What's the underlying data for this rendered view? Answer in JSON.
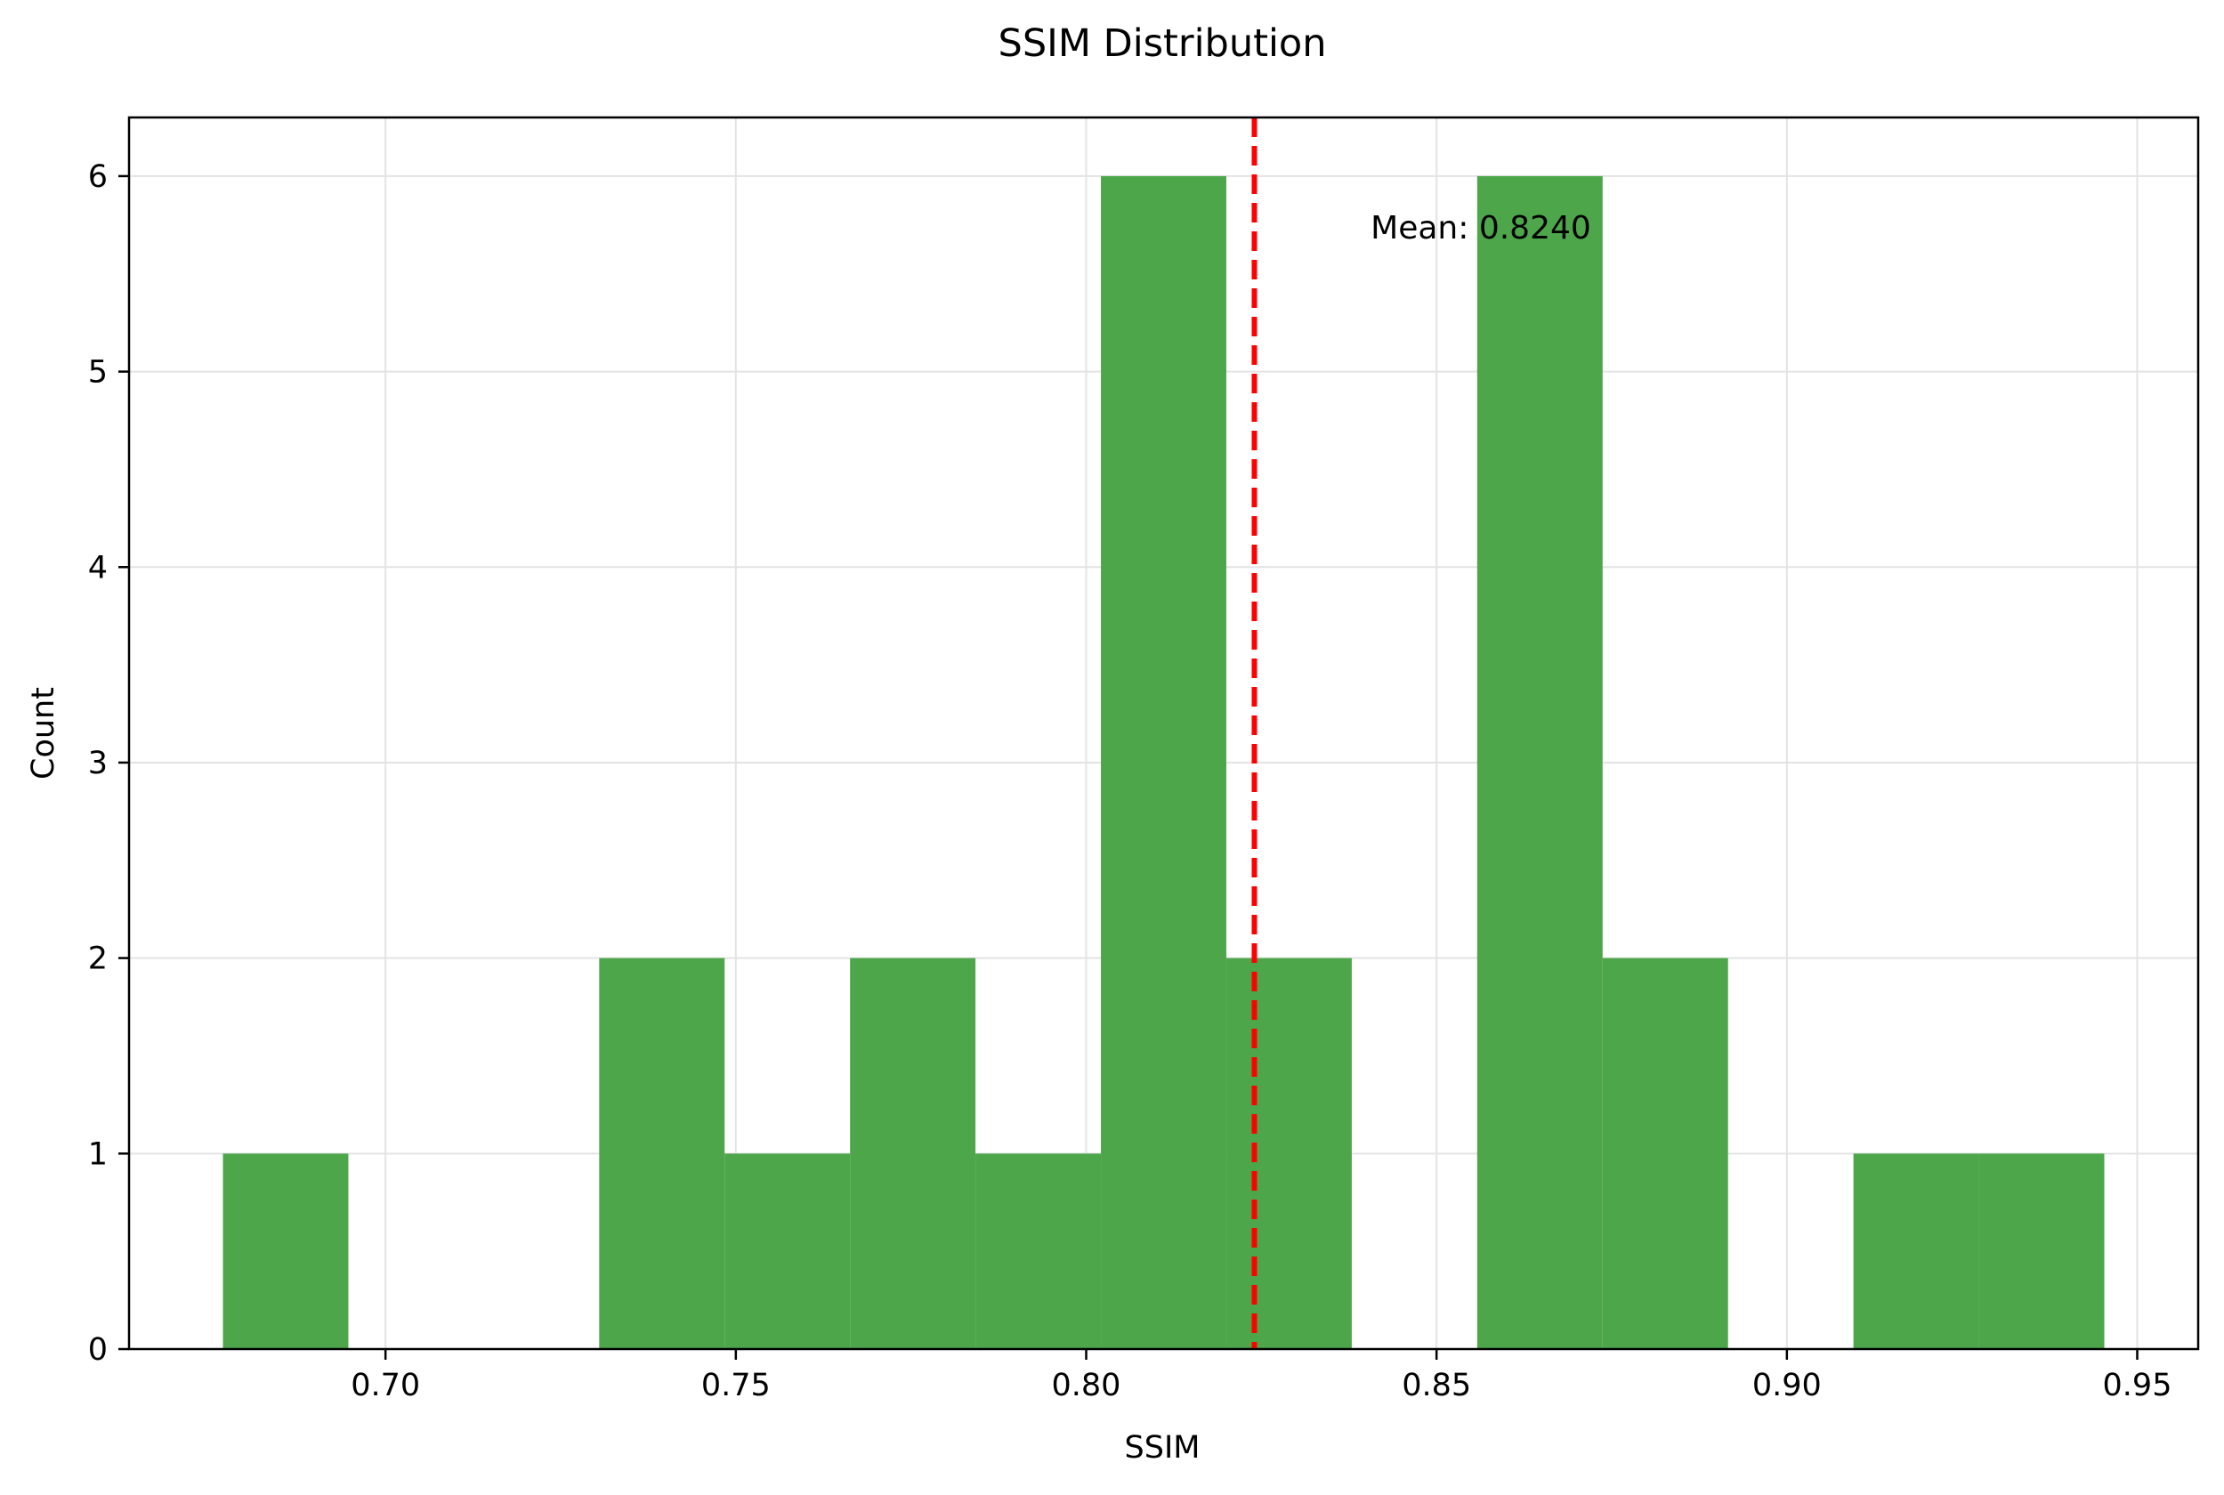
{
  "chart_data": {
    "type": "bar",
    "title": "SSIM Distribution",
    "xlabel": "SSIM",
    "ylabel": "Count",
    "bins": [
      {
        "x0": 0.6768,
        "x1": 0.6947,
        "count": 1
      },
      {
        "x0": 0.6947,
        "x1": 0.7126,
        "count": 0
      },
      {
        "x0": 0.7126,
        "x1": 0.7305,
        "count": 0
      },
      {
        "x0": 0.7305,
        "x1": 0.7484,
        "count": 2
      },
      {
        "x0": 0.7484,
        "x1": 0.7663,
        "count": 1
      },
      {
        "x0": 0.7663,
        "x1": 0.7842,
        "count": 2
      },
      {
        "x0": 0.7842,
        "x1": 0.8021,
        "count": 1
      },
      {
        "x0": 0.8021,
        "x1": 0.82,
        "count": 6
      },
      {
        "x0": 0.82,
        "x1": 0.8379,
        "count": 2
      },
      {
        "x0": 0.8379,
        "x1": 0.8558,
        "count": 0
      },
      {
        "x0": 0.8558,
        "x1": 0.8737,
        "count": 6
      },
      {
        "x0": 0.8737,
        "x1": 0.8916,
        "count": 2
      },
      {
        "x0": 0.8916,
        "x1": 0.9095,
        "count": 0
      },
      {
        "x0": 0.9095,
        "x1": 0.9274,
        "count": 1
      },
      {
        "x0": 0.9274,
        "x1": 0.9453,
        "count": 1
      }
    ],
    "bar_color": "#4ea64b",
    "xlim": [
      0.6634,
      0.9587
    ],
    "ylim": [
      0,
      6.3
    ],
    "x_ticks": [
      0.7,
      0.75,
      0.8,
      0.85,
      0.9,
      0.95
    ],
    "x_tick_labels": [
      "0.70",
      "0.75",
      "0.80",
      "0.85",
      "0.90",
      "0.95"
    ],
    "y_ticks": [
      0,
      1,
      2,
      3,
      4,
      5,
      6
    ],
    "y_tick_labels": [
      "0",
      "1",
      "2",
      "3",
      "4",
      "5",
      "6"
    ],
    "grid": true,
    "mean_line": {
      "value": 0.824,
      "color": "#ff0000",
      "style": "dashed",
      "label": "Mean: 0.8240"
    }
  }
}
